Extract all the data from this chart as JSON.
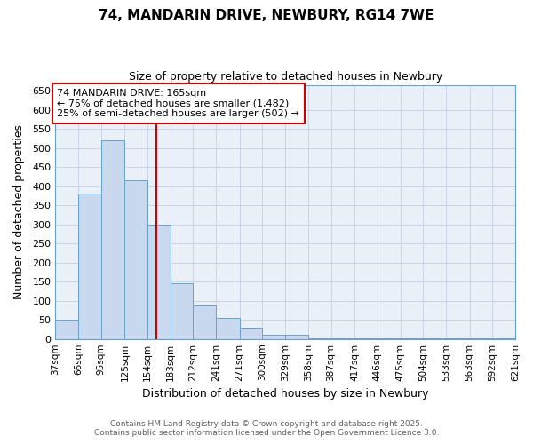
{
  "title1": "74, MANDARIN DRIVE, NEWBURY, RG14 7WE",
  "title2": "Size of property relative to detached houses in Newbury",
  "xlabel": "Distribution of detached houses by size in Newbury",
  "ylabel": "Number of detached properties",
  "bin_labels": [
    "37sqm",
    "66sqm",
    "95sqm",
    "125sqm",
    "154sqm",
    "183sqm",
    "212sqm",
    "241sqm",
    "271sqm",
    "300sqm",
    "329sqm",
    "358sqm",
    "387sqm",
    "417sqm",
    "446sqm",
    "475sqm",
    "504sqm",
    "533sqm",
    "563sqm",
    "592sqm",
    "621sqm"
  ],
  "bin_edges": [
    37,
    66,
    95,
    125,
    154,
    183,
    212,
    241,
    271,
    300,
    329,
    358,
    387,
    417,
    446,
    475,
    504,
    533,
    563,
    592,
    621
  ],
  "bar_heights": [
    50,
    380,
    520,
    415,
    300,
    145,
    87,
    55,
    30,
    10,
    10,
    2,
    1,
    1,
    1,
    1,
    1,
    1,
    1,
    1
  ],
  "bar_color": "#c8d8ee",
  "bar_edgecolor": "#6aa0cc",
  "grid_color": "#c8d4e8",
  "background_color": "#ffffff",
  "plot_bg_color": "#eaf0f8",
  "vline_x": 165,
  "vline_color": "#cc0000",
  "ylim": [
    0,
    665
  ],
  "yticks": [
    0,
    50,
    100,
    150,
    200,
    250,
    300,
    350,
    400,
    450,
    500,
    550,
    600,
    650
  ],
  "annotation_title": "74 MANDARIN DRIVE: 165sqm",
  "annotation_line1": "← 75% of detached houses are smaller (1,482)",
  "annotation_line2": "25% of semi-detached houses are larger (502) →",
  "annotation_box_color": "#ffffff",
  "annotation_border_color": "#cc0000",
  "footer1": "Contains HM Land Registry data © Crown copyright and database right 2025.",
  "footer2": "Contains public sector information licensed under the Open Government Licence 3.0."
}
